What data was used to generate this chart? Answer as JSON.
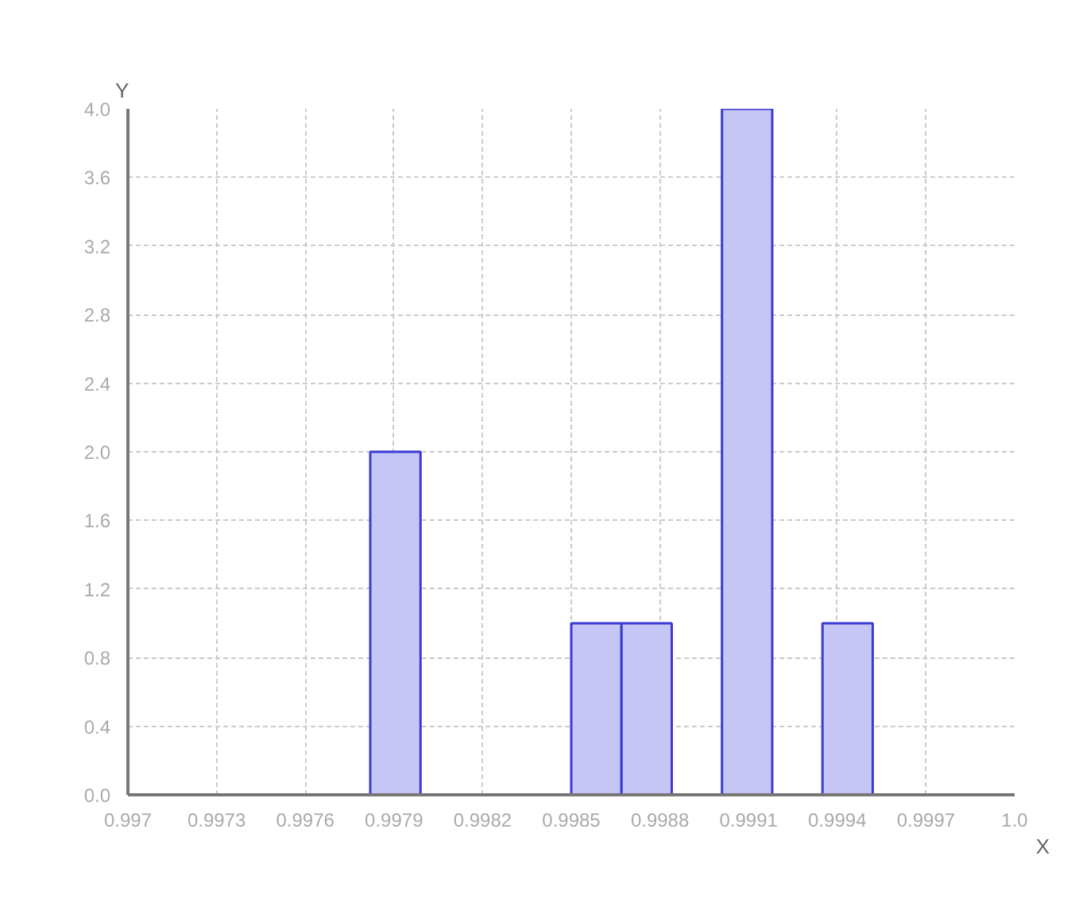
{
  "chart_data": {
    "type": "histogram",
    "xlabel": "X",
    "ylabel": "Y",
    "bins": [
      0.99782,
      0.99799,
      0.99816,
      0.99833,
      0.9985,
      0.99867,
      0.99884,
      0.99901,
      0.99918,
      0.99935,
      0.99952
    ],
    "values": [
      2,
      0,
      0,
      0,
      1,
      1,
      0,
      4,
      0,
      1
    ],
    "color": "#c6c6f6",
    "xlim": [
      0.997,
      1.0
    ],
    "xticks": [
      0.997,
      0.9973,
      0.9976,
      0.9979,
      0.9982,
      0.9985,
      0.9988,
      0.9991,
      0.9994,
      0.9997,
      {
        "value": 1.0,
        "label": "1.0"
      }
    ],
    "ylim": [
      0,
      4.0
    ],
    "yticks": [
      {
        "value": 0,
        "label": "0.0"
      },
      {
        "value": 0.4,
        "label": "0.4"
      },
      {
        "value": 0.8,
        "label": "0.8"
      },
      {
        "value": 1.2,
        "label": "1.2"
      },
      {
        "value": 1.6,
        "label": "1.6"
      },
      {
        "value": 2.0,
        "label": "2.0"
      },
      {
        "value": 2.4,
        "label": "2.4"
      },
      {
        "value": 2.8,
        "label": "2.8"
      },
      {
        "value": 3.2,
        "label": "3.2"
      },
      {
        "value": 3.6,
        "label": "3.6"
      },
      {
        "value": 4.0,
        "label": "4.0"
      }
    ],
    "grid": true
  }
}
